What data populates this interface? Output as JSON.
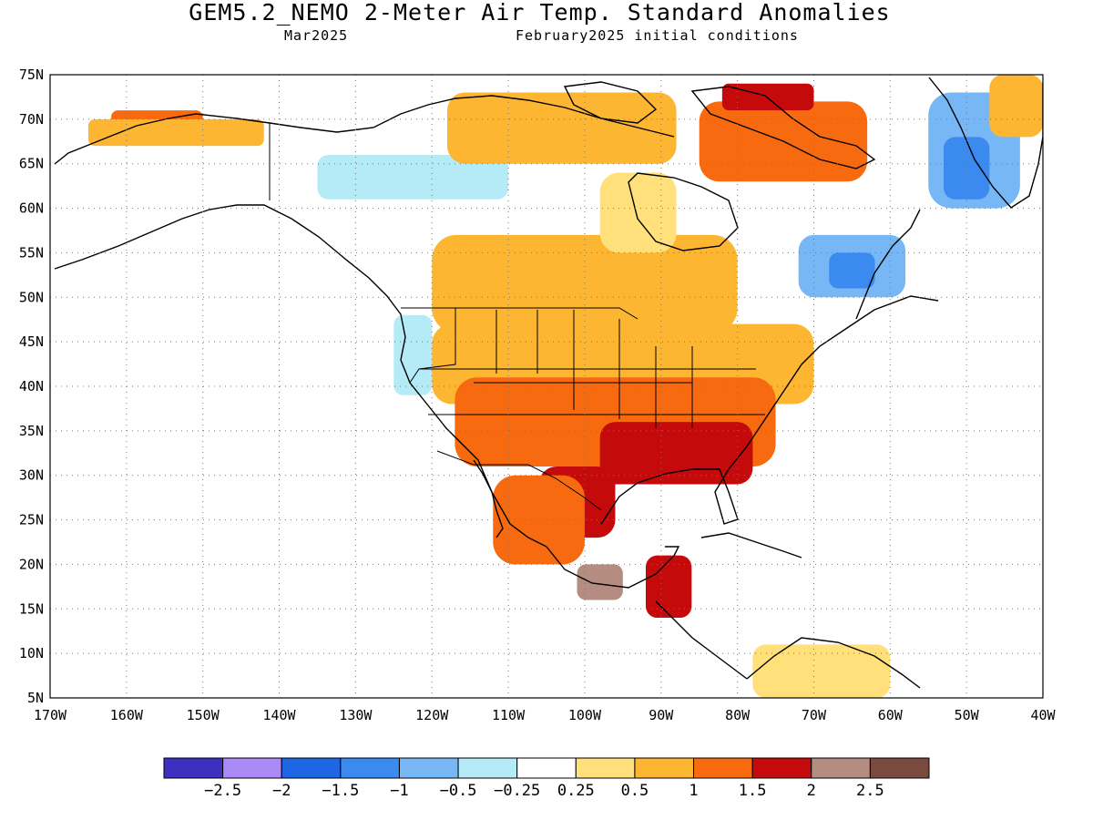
{
  "figure": {
    "title": "GEM5.2_NEMO 2-Meter Air Temp. Standard Anomalies",
    "valid_month": "Mar2025",
    "initial_conditions": "February2025 initial conditions"
  },
  "map": {
    "lon_range": [
      -170,
      -40
    ],
    "lat_range": [
      5,
      75
    ],
    "lat_ticks": [
      "75N",
      "70N",
      "65N",
      "60N",
      "55N",
      "50N",
      "45N",
      "40N",
      "35N",
      "30N",
      "25N",
      "20N",
      "15N",
      "10N",
      "5N"
    ],
    "lon_ticks": [
      "170W",
      "160W",
      "150W",
      "140W",
      "130W",
      "120W",
      "110W",
      "100W",
      "90W",
      "80W",
      "70W",
      "60W",
      "50W",
      "40W"
    ],
    "grid": "dotted"
  },
  "colorbar": {
    "labels": [
      "-2.5",
      "-2",
      "-1.5",
      "-1",
      "-0.5",
      "-0.25",
      "0.25",
      "0.5",
      "1",
      "1.5",
      "2",
      "2.5"
    ],
    "colors": [
      "#3d2fbf",
      "#a98af7",
      "#1f66e5",
      "#3b8af0",
      "#78b7f5",
      "#b4ebf7",
      "#ffffff",
      "#ffe07a",
      "#fdb632",
      "#f86a0f",
      "#c40a0a",
      "#b58c80",
      "#7b4a3f"
    ]
  },
  "regions": [
    {
      "name": "Alaska north coast",
      "lon": [
        -162,
        -150
      ],
      "lat": [
        68,
        71
      ],
      "color": "#f86a0f"
    },
    {
      "name": "Alaska north coast fringe",
      "lon": [
        -165,
        -142
      ],
      "lat": [
        67,
        70
      ],
      "color": "#fdb632"
    },
    {
      "name": "Yukon cool",
      "lon": [
        -135,
        -110
      ],
      "lat": [
        61,
        66
      ],
      "color": "#b4ebf7"
    },
    {
      "name": "Arctic archipelago",
      "lon": [
        -118,
        -88
      ],
      "lat": [
        65,
        73
      ],
      "color": "#fdb632"
    },
    {
      "name": "Baffin",
      "lon": [
        -85,
        -63
      ],
      "lat": [
        63,
        72
      ],
      "color": "#f86a0f"
    },
    {
      "name": "Ellesmere warm",
      "lon": [
        -82,
        -70
      ],
      "lat": [
        71,
        74
      ],
      "color": "#c40a0a"
    },
    {
      "name": "Canadian prairies",
      "lon": [
        -120,
        -80
      ],
      "lat": [
        46,
        57
      ],
      "color": "#fdb632"
    },
    {
      "name": "Hudson west",
      "lon": [
        -98,
        -88
      ],
      "lat": [
        55,
        64
      ],
      "color": "#ffe07a"
    },
    {
      "name": "Labrador cool",
      "lon": [
        -72,
        -58
      ],
      "lat": [
        50,
        57
      ],
      "color": "#78b7f5"
    },
    {
      "name": "Labrador core",
      "lon": [
        -68,
        -62
      ],
      "lat": [
        51,
        55
      ],
      "color": "#3b8af0"
    },
    {
      "name": "Greenland cool",
      "lon": [
        -55,
        -43
      ],
      "lat": [
        60,
        73
      ],
      "color": "#78b7f5"
    },
    {
      "name": "Greenland core",
      "lon": [
        -53,
        -47
      ],
      "lat": [
        61,
        68
      ],
      "color": "#3b8af0"
    },
    {
      "name": "Greenland NE warm",
      "lon": [
        -47,
        -40
      ],
      "lat": [
        68,
        75
      ],
      "color": "#fdb632"
    },
    {
      "name": "US north",
      "lon": [
        -120,
        -70
      ],
      "lat": [
        38,
        47
      ],
      "color": "#fdb632"
    },
    {
      "name": "US central",
      "lon": [
        -117,
        -75
      ],
      "lat": [
        31,
        41
      ],
      "color": "#f86a0f"
    },
    {
      "name": "US southeast",
      "lon": [
        -98,
        -78
      ],
      "lat": [
        29,
        36
      ],
      "color": "#c40a0a"
    },
    {
      "name": "Texas Mexico",
      "lon": [
        -106,
        -96
      ],
      "lat": [
        23,
        31
      ],
      "color": "#c40a0a"
    },
    {
      "name": "Mexico west",
      "lon": [
        -112,
        -100
      ],
      "lat": [
        20,
        30
      ],
      "color": "#f86a0f"
    },
    {
      "name": "South Mexico",
      "lon": [
        -101,
        -95
      ],
      "lat": [
        16,
        20
      ],
      "color": "#b58c80"
    },
    {
      "name": "Central America",
      "lon": [
        -92,
        -86
      ],
      "lat": [
        14,
        21
      ],
      "color": "#c40a0a"
    },
    {
      "name": "Pacific NW cool",
      "lon": [
        -125,
        -120
      ],
      "lat": [
        39,
        48
      ],
      "color": "#b4ebf7"
    },
    {
      "name": "South America north",
      "lon": [
        -78,
        -60
      ],
      "lat": [
        5,
        11
      ],
      "color": "#ffe07a"
    }
  ]
}
